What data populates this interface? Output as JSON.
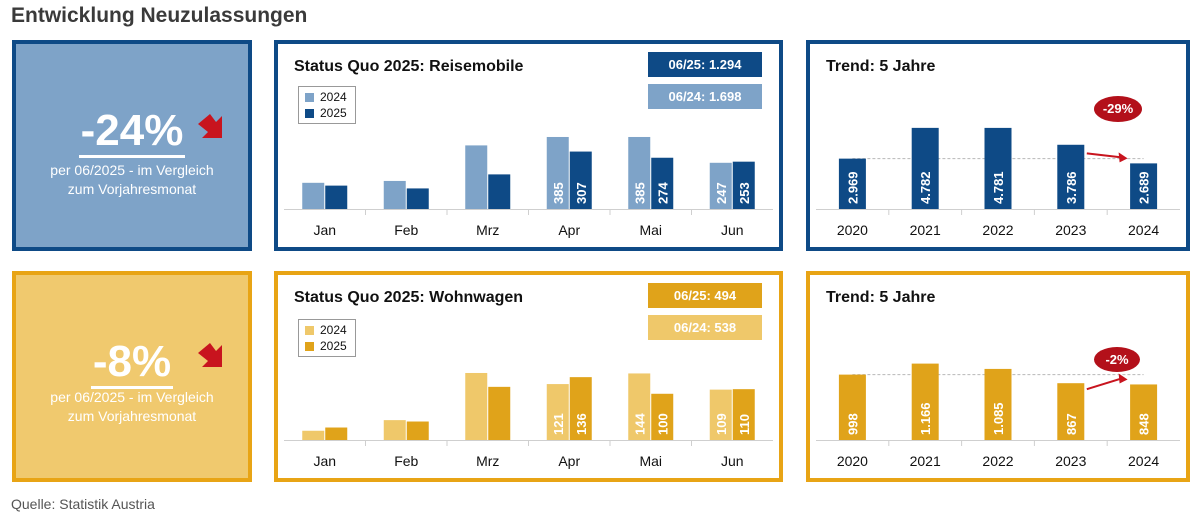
{
  "title": "Entwicklung Neuzulassungen",
  "source": "Quelle: Statistik Austria",
  "colors": {
    "blue_dark": "#0e4a86",
    "blue_light": "#7ea3c8",
    "gold_dark": "#e0a31a",
    "gold_light": "#efc86a",
    "trend_badge": "#b3101a",
    "arrow": "#c8141e"
  },
  "reisemobile": {
    "kpi": {
      "percent": "-24%",
      "desc_line1": "per 06/2025 - im Vergleich",
      "desc_line2": "zum Vorjahresmonat",
      "icon": "down-arrow-icon"
    },
    "status_title": "Status Quo 2025: Reisemobile",
    "badge_2025": "06/25: 1.294",
    "badge_2024": "06/24: 1.698",
    "legend": [
      "2024",
      "2025"
    ],
    "trend_title": "Trend: 5 Jahre",
    "trend_change": "-29%"
  },
  "wohnwagen": {
    "kpi": {
      "percent": "-8%",
      "desc_line1": "per 06/2025 - im Vergleich",
      "desc_line2": "zum Vorjahresmonat",
      "icon": "down-arrow-icon"
    },
    "status_title": "Status Quo 2025: Wohnwagen",
    "badge_2025": "06/25: 494",
    "badge_2024": "06/24: 538",
    "legend": [
      "2024",
      "2025"
    ],
    "trend_title": "Trend: 5 Jahre",
    "trend_change": "-2%"
  },
  "chart_data": [
    {
      "id": "monthly_reisemobile",
      "type": "bar",
      "categories": [
        "Jan",
        "Feb",
        "Mrz",
        "Apr",
        "Mai",
        "Jun"
      ],
      "series": [
        {
          "name": "2024",
          "values": [
            140,
            150,
            340,
            385,
            385,
            247
          ],
          "labels": [
            "",
            "",
            "",
            "385",
            "385",
            "247"
          ]
        },
        {
          "name": "2025",
          "values": [
            125,
            110,
            185,
            307,
            274,
            253
          ],
          "labels": [
            "",
            "",
            "",
            "307",
            "274",
            "253"
          ]
        }
      ],
      "ylim": [
        0,
        420
      ]
    },
    {
      "id": "trend_reisemobile",
      "type": "bar",
      "categories": [
        "2020",
        "2021",
        "2022",
        "2023",
        "2024"
      ],
      "values": [
        2969,
        4782,
        4781,
        3786,
        2689
      ],
      "labels": [
        "2.969",
        "4.782",
        "4.781",
        "3.786",
        "2.689"
      ],
      "ylim": [
        0,
        5600
      ]
    },
    {
      "id": "monthly_wohnwagen",
      "type": "bar",
      "categories": [
        "Jan",
        "Feb",
        "Mrz",
        "Apr",
        "Mai",
        "Jun"
      ],
      "series": [
        {
          "name": "2024",
          "values": [
            20,
            43,
            145,
            121,
            144,
            109
          ],
          "labels": [
            "",
            "",
            "",
            "121",
            "144",
            "109"
          ]
        },
        {
          "name": "2025",
          "values": [
            27,
            40,
            115,
            136,
            100,
            110
          ],
          "labels": [
            "",
            "",
            "",
            "136",
            "100",
            "110"
          ]
        }
      ],
      "ylim": [
        0,
        170
      ]
    },
    {
      "id": "trend_wohnwagen",
      "type": "bar",
      "categories": [
        "2020",
        "2021",
        "2022",
        "2023",
        "2024"
      ],
      "values": [
        998,
        1166,
        1085,
        867,
        848
      ],
      "labels": [
        "998",
        "1.166",
        "1.085",
        "867",
        "848"
      ],
      "ylim": [
        0,
        1450
      ]
    }
  ]
}
